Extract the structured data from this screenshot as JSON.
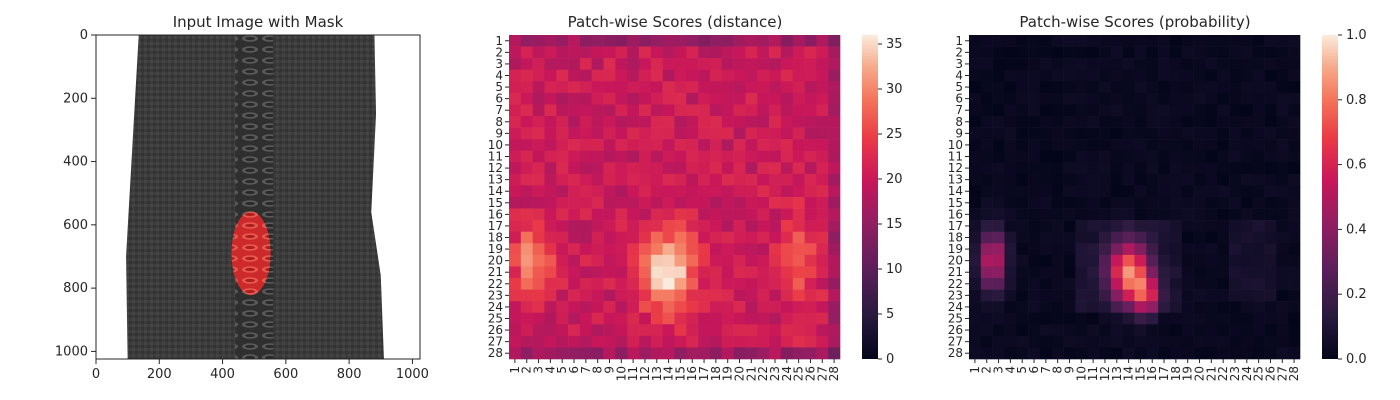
{
  "chart_data": [
    {
      "type": "image",
      "title": "Input Image with Mask",
      "xticks": [
        "0",
        "200",
        "400",
        "600",
        "800",
        "1000"
      ],
      "yticks": [
        "0",
        "200",
        "400",
        "600",
        "800",
        "1000"
      ],
      "xlim": [
        0,
        1024
      ],
      "ylim": [
        1024,
        0
      ],
      "image": {
        "description_colors": {
          "background": "#ffffff",
          "fabric": "#3a3a3a",
          "mask": "#e02b2b"
        },
        "fabric_x_range": [
          100,
          900
        ],
        "mask_ellipse": {
          "cx": 490,
          "cy": 690,
          "rx": 62,
          "ry": 132
        }
      }
    },
    {
      "type": "heatmap",
      "title": "Patch-wise Scores (distance)",
      "x_labels": [
        "1",
        "2",
        "3",
        "4",
        "5",
        "6",
        "7",
        "8",
        "9",
        "10",
        "11",
        "12",
        "13",
        "14",
        "15",
        "16",
        "17",
        "18",
        "19",
        "20",
        "21",
        "22",
        "23",
        "24",
        "25",
        "26",
        "27",
        "28"
      ],
      "y_labels": [
        "1",
        "2",
        "3",
        "4",
        "5",
        "6",
        "7",
        "8",
        "9",
        "10",
        "11",
        "12",
        "13",
        "14",
        "15",
        "16",
        "17",
        "18",
        "19",
        "20",
        "21",
        "22",
        "23",
        "24",
        "25",
        "26",
        "27",
        "28"
      ],
      "colorbar": {
        "min": 0,
        "max": 36,
        "ticks": [
          "0",
          "5",
          "10",
          "15",
          "20",
          "25",
          "30",
          "35"
        ]
      },
      "colormap": "rocket",
      "hotspots": [
        {
          "row": 20,
          "col": 2.5,
          "value": 30,
          "sr": 2.2,
          "sc": 1.2
        },
        {
          "row": 21,
          "col": 14,
          "value": 36,
          "sr": 2.5,
          "sc": 1.6
        },
        {
          "row": 20,
          "col": 25,
          "value": 26,
          "sr": 3.0,
          "sc": 1.2
        }
      ],
      "base_value": 20
    },
    {
      "type": "heatmap",
      "title": "Patch-wise Scores (probability)",
      "x_labels": [
        "1",
        "2",
        "3",
        "4",
        "5",
        "6",
        "7",
        "8",
        "9",
        "10",
        "11",
        "12",
        "13",
        "14",
        "15",
        "16",
        "17",
        "18",
        "19",
        "20",
        "21",
        "22",
        "23",
        "24",
        "25",
        "26",
        "27",
        "28"
      ],
      "y_labels": [
        "1",
        "2",
        "3",
        "4",
        "5",
        "6",
        "7",
        "8",
        "9",
        "10",
        "11",
        "12",
        "13",
        "14",
        "15",
        "16",
        "17",
        "18",
        "19",
        "20",
        "21",
        "22",
        "23",
        "24",
        "25",
        "26",
        "27",
        "28"
      ],
      "colorbar": {
        "min": 0,
        "max": 1,
        "ticks": [
          "0.0",
          "0.2",
          "0.4",
          "0.6",
          "0.8",
          "1.0"
        ]
      },
      "colormap": "rocket",
      "hotspots": [
        {
          "row": 20,
          "col": 2.5,
          "value": 0.55,
          "sr": 1.8,
          "sc": 0.8
        },
        {
          "row": 21,
          "col": 14,
          "value": 0.75,
          "sr": 1.8,
          "sc": 1.2
        },
        {
          "row": 23,
          "col": 15.5,
          "value": 0.5,
          "sr": 1.2,
          "sc": 0.8
        }
      ],
      "base_value": 0.0
    }
  ]
}
